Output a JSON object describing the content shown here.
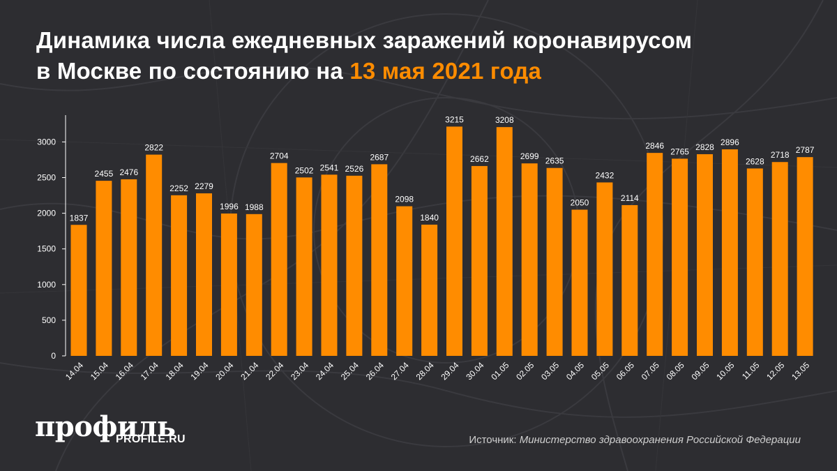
{
  "title": {
    "line1": "Динамика числа ежедневных заражений коронавирусом",
    "line2_prefix": "в Москве по состоянию на ",
    "line2_accent": "13 мая 2021 года"
  },
  "colors": {
    "background": "#2d2d31",
    "bar": "#ff8c00",
    "accent": "#ff8c00",
    "text": "#ffffff"
  },
  "logo": {
    "main": "профиль",
    "sub": "PROFILE.RU"
  },
  "source": {
    "label": "Источник: ",
    "value": "Министерство здравоохранения Российской Федерации"
  },
  "chart_data": {
    "type": "bar",
    "title": "",
    "xlabel": "",
    "ylabel": "",
    "ylim": [
      0,
      3200
    ],
    "yticks": [
      0,
      500,
      1000,
      1500,
      2000,
      2500,
      3000
    ],
    "grid": false,
    "categories": [
      "14.04",
      "15.04",
      "16.04",
      "17.04",
      "18.04",
      "19.04",
      "20.04",
      "21.04",
      "22.04",
      "23.04",
      "24.04",
      "25.04",
      "26.04",
      "27.04",
      "28.04",
      "29.04",
      "30.04",
      "01.05",
      "02.05",
      "03.05",
      "04.05",
      "05.05",
      "06.05",
      "07.05",
      "08.05",
      "09.05",
      "10.05",
      "11.05",
      "12.05",
      "13.05"
    ],
    "values": [
      1837,
      2455,
      2476,
      2822,
      2252,
      2279,
      1996,
      1988,
      2704,
      2502,
      2541,
      2526,
      2687,
      2098,
      1840,
      3215,
      2662,
      3208,
      2699,
      2635,
      2050,
      2432,
      2114,
      2846,
      2765,
      2828,
      2896,
      2628,
      2718,
      2787
    ]
  }
}
